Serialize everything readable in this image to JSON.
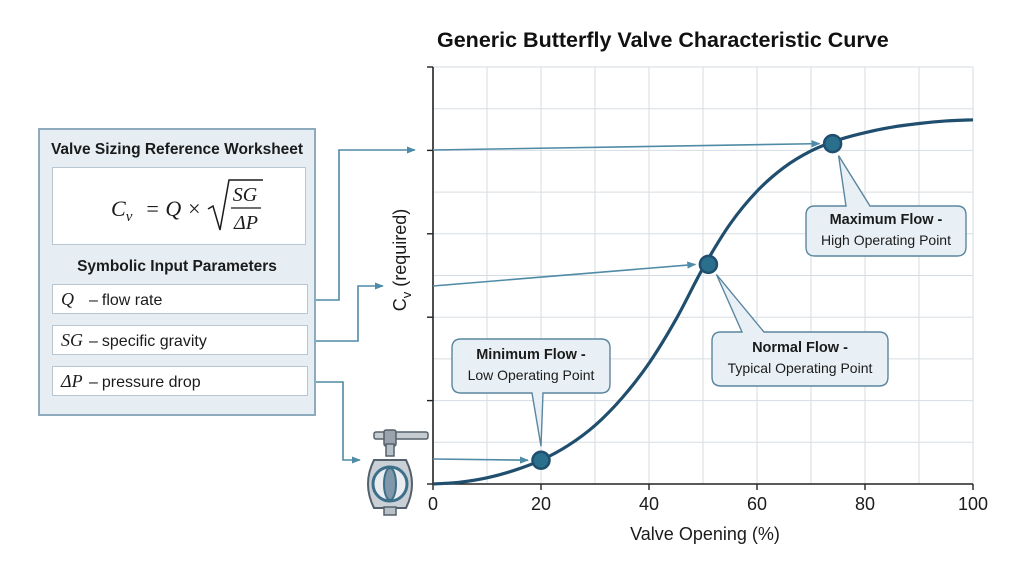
{
  "title": "Generic Butterfly Valve Characteristic Curve",
  "worksheet": {
    "title": "Valve Sizing Reference Worksheet",
    "formula": {
      "lhs": "C",
      "lhs_sub": "v",
      "eq": "= Q ×",
      "num": "SG",
      "den": "ΔP"
    },
    "params_title": "Symbolic Input Parameters",
    "params": [
      {
        "symbol": "Q",
        "dash": "–",
        "label": "flow rate"
      },
      {
        "symbol": "SG",
        "dash": "–",
        "label": "specific gravity"
      },
      {
        "symbol": "ΔP",
        "dash": "–",
        "label": "pressure drop"
      }
    ]
  },
  "chart_data": {
    "type": "line",
    "xlabel": "Valve Opening (%)",
    "ylabel_main": "C",
    "ylabel_sub": "v",
    "ylabel_rest": " (required)",
    "xlim": [
      0,
      100
    ],
    "x_ticks": [
      "0",
      "20",
      "40",
      "60",
      "80",
      "100"
    ],
    "y_tick_labels": "none",
    "grid": true,
    "curve": {
      "x": [
        0,
        5,
        10,
        15,
        20,
        25,
        30,
        35,
        40,
        45,
        50,
        55,
        60,
        65,
        70,
        75,
        80,
        85,
        90,
        95,
        100
      ],
      "y": [
        0,
        0.005,
        0.017,
        0.037,
        0.065,
        0.105,
        0.16,
        0.235,
        0.33,
        0.45,
        0.59,
        0.71,
        0.8,
        0.865,
        0.91,
        0.94,
        0.96,
        0.975,
        0.985,
        0.992,
        0.995
      ]
    },
    "points": [
      {
        "name": "min",
        "x": 20,
        "y": 0.065,
        "title": "Minimum Flow -",
        "sub": "Low Operating Point"
      },
      {
        "name": "normal",
        "x": 51,
        "y": 0.6,
        "title": "Normal Flow -",
        "sub": "Typical Operating Point"
      },
      {
        "name": "max",
        "x": 74,
        "y": 0.93,
        "title": "Maximum Flow -",
        "sub": "High Operating Point"
      }
    ]
  },
  "colors": {
    "curve": "#1f4e6e",
    "marker": "#2a6f8c",
    "arrow": "#4f8aa6",
    "panel_bg": "#e7eef3",
    "panel_border": "#8eaabd",
    "callout_bg": "#e8f0f5",
    "callout_border": "#5a869f",
    "grid": "#d6dde2",
    "axis": "#222222"
  },
  "icons": [
    "butterfly-valve-icon"
  ]
}
